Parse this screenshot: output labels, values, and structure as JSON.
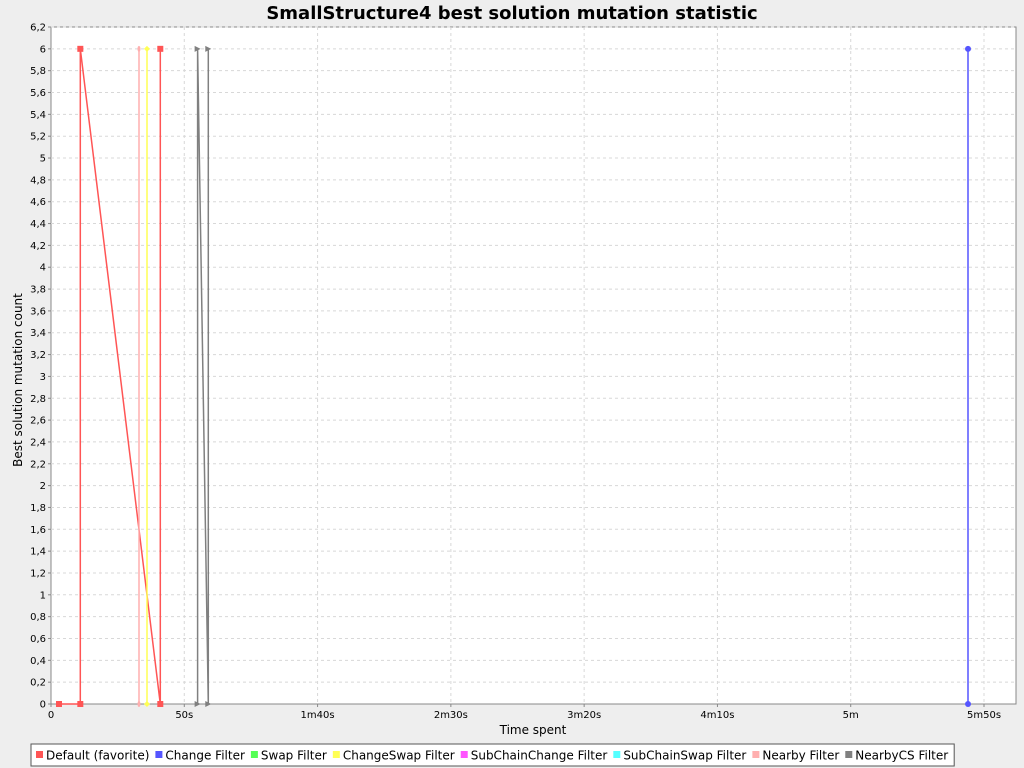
{
  "chart_data": {
    "type": "line",
    "title": "SmallStructure4 best solution mutation statistic",
    "xlabel": "Time spent",
    "ylabel": "Best solution mutation count",
    "xlim": [
      0,
      362
    ],
    "ylim": [
      0,
      6.2
    ],
    "x_ticks": [
      {
        "value": 0,
        "label": "0"
      },
      {
        "value": 50,
        "label": "50s"
      },
      {
        "value": 100,
        "label": "1m40s"
      },
      {
        "value": 150,
        "label": "2m30s"
      },
      {
        "value": 200,
        "label": "3m20s"
      },
      {
        "value": 250,
        "label": "4m10s"
      },
      {
        "value": 300,
        "label": "5m"
      },
      {
        "value": 350,
        "label": "5m50s"
      }
    ],
    "y_ticks": [
      {
        "value": 0,
        "label": "0"
      },
      {
        "value": 0.2,
        "label": "0,2"
      },
      {
        "value": 0.4,
        "label": "0,4"
      },
      {
        "value": 0.6,
        "label": "0,6"
      },
      {
        "value": 0.8,
        "label": "0,8"
      },
      {
        "value": 1,
        "label": "1"
      },
      {
        "value": 1.2,
        "label": "1,2"
      },
      {
        "value": 1.4,
        "label": "1,4"
      },
      {
        "value": 1.6,
        "label": "1,6"
      },
      {
        "value": 1.8,
        "label": "1,8"
      },
      {
        "value": 2,
        "label": "2"
      },
      {
        "value": 2.2,
        "label": "2,2"
      },
      {
        "value": 2.4,
        "label": "2,4"
      },
      {
        "value": 2.6,
        "label": "2,6"
      },
      {
        "value": 2.8,
        "label": "2,8"
      },
      {
        "value": 3,
        "label": "3"
      },
      {
        "value": 3.2,
        "label": "3,2"
      },
      {
        "value": 3.4,
        "label": "3,4"
      },
      {
        "value": 3.6,
        "label": "3,6"
      },
      {
        "value": 3.8,
        "label": "3,8"
      },
      {
        "value": 4,
        "label": "4"
      },
      {
        "value": 4.2,
        "label": "4,2"
      },
      {
        "value": 4.4,
        "label": "4,4"
      },
      {
        "value": 4.6,
        "label": "4,6"
      },
      {
        "value": 4.8,
        "label": "4,8"
      },
      {
        "value": 5,
        "label": "5"
      },
      {
        "value": 5.2,
        "label": "5,2"
      },
      {
        "value": 5.4,
        "label": "5,4"
      },
      {
        "value": 5.6,
        "label": "5,6"
      },
      {
        "value": 5.8,
        "label": "5,8"
      },
      {
        "value": 6,
        "label": "6"
      },
      {
        "value": 6.2,
        "label": "6,2"
      }
    ],
    "grid": true,
    "legend_position": "bottom",
    "series": [
      {
        "name": "Default (favorite)",
        "color": "#ff5555",
        "marker": "square",
        "points": [
          [
            3,
            0
          ],
          [
            11,
            0
          ],
          [
            11,
            6
          ],
          [
            41,
            0
          ],
          [
            41,
            6
          ]
        ]
      },
      {
        "name": "Change Filter",
        "color": "#5555ff",
        "marker": "circle",
        "points": [
          [
            344,
            0
          ],
          [
            344,
            6
          ]
        ]
      },
      {
        "name": "Swap Filter",
        "color": "#55ff55",
        "marker": "triangle-up",
        "points": []
      },
      {
        "name": "ChangeSwap Filter",
        "color": "#ffff55",
        "marker": "diamond",
        "points": [
          [
            36,
            0
          ],
          [
            36,
            6
          ]
        ]
      },
      {
        "name": "SubChainChange Filter",
        "color": "#ff55ff",
        "marker": "rect-h",
        "points": []
      },
      {
        "name": "SubChainSwap Filter",
        "color": "#55ffff",
        "marker": "triangle-down",
        "points": []
      },
      {
        "name": "Nearby Filter",
        "color": "#ffafaf",
        "marker": "ellipse",
        "points": [
          [
            33,
            0
          ],
          [
            33,
            6
          ]
        ]
      },
      {
        "name": "NearbyCS Filter",
        "color": "#808080",
        "marker": "triangle-right",
        "points": [
          [
            55,
            0
          ],
          [
            55,
            6
          ],
          [
            59,
            0
          ],
          [
            59,
            6
          ]
        ]
      }
    ]
  }
}
